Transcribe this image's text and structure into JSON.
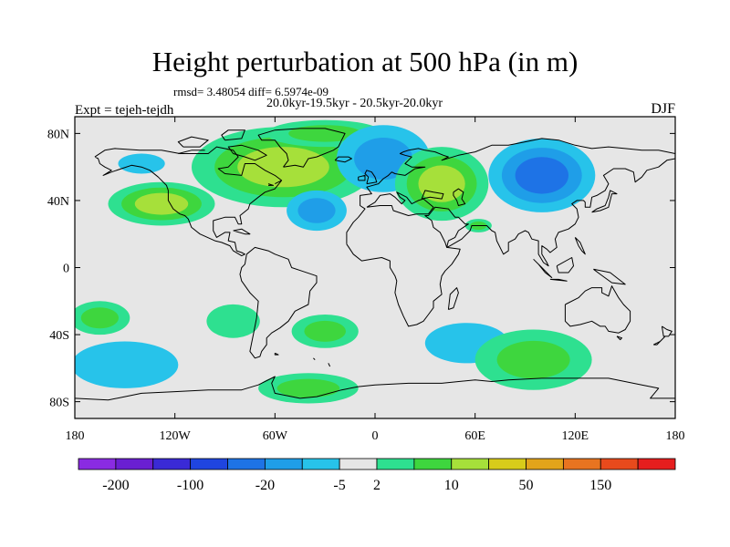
{
  "header": {
    "title": "Height perturbation at 500 hPa (in m)",
    "stats": "rmsd= 3.48054 diff= 6.5974e-09",
    "period": "20.0kyr-19.5kyr - 20.5kyr-20.0kyr",
    "left_label": "Expt = tejeh-tejdh",
    "right_label": "DJF"
  },
  "chart_data": {
    "type": "heatmap",
    "projection": "cylindrical-equidistant",
    "title": "Height perturbation at 500 hPa (in m)",
    "xlim": [
      -180,
      180
    ],
    "ylim": [
      -90,
      90
    ],
    "x_ticks": [
      {
        "value": -180,
        "label": "180"
      },
      {
        "value": -120,
        "label": "120W"
      },
      {
        "value": -60,
        "label": "60W"
      },
      {
        "value": 0,
        "label": "0"
      },
      {
        "value": 60,
        "label": "60E"
      },
      {
        "value": 120,
        "label": "120E"
      },
      {
        "value": 180,
        "label": "180"
      }
    ],
    "y_ticks": [
      {
        "value": 80,
        "label": "80N"
      },
      {
        "value": 40,
        "label": "40N"
      },
      {
        "value": 0,
        "label": "0"
      },
      {
        "value": -40,
        "label": "40S"
      },
      {
        "value": -80,
        "label": "80S"
      }
    ],
    "colorbar": {
      "colors": [
        "#8a2be2",
        "#6a1fd2",
        "#3a2ad6",
        "#1f45e0",
        "#1e73e6",
        "#1f9ee8",
        "#27c3ea",
        "#e6e6e6",
        "#2ee090",
        "#3ed63e",
        "#a6e03a",
        "#d8cc1a",
        "#e2a41a",
        "#e87420",
        "#e84a1c",
        "#e61e1e"
      ],
      "levels": [
        -200,
        -150,
        -100,
        -50,
        -20,
        -10,
        -5,
        2,
        5,
        10,
        20,
        50,
        100,
        150,
        200
      ],
      "labels": [
        {
          "value": -200,
          "label": "-200"
        },
        {
          "value": -100,
          "label": "-100"
        },
        {
          "value": -20,
          "label": "-20"
        },
        {
          "value": -5,
          "label": "-5"
        },
        {
          "value": 2,
          "label": "2"
        },
        {
          "value": 10,
          "label": "10"
        },
        {
          "value": 50,
          "label": "50"
        },
        {
          "value": 150,
          "label": "150"
        }
      ]
    },
    "anomalies": [
      {
        "lon": -55,
        "lat": 60,
        "rlon": 55,
        "rlat": 24,
        "value": 14
      },
      {
        "lon": -30,
        "lat": 80,
        "rlon": 35,
        "rlat": 8,
        "value": 6
      },
      {
        "lon": -128,
        "lat": 38,
        "rlon": 32,
        "rlat": 13,
        "value": 12
      },
      {
        "lon": -160,
        "lat": 68,
        "rlon": 25,
        "rlat": 10,
        "value": -4
      },
      {
        "lon": -140,
        "lat": 62,
        "rlon": 14,
        "rlat": 6,
        "value": -6
      },
      {
        "lon": -35,
        "lat": 34,
        "rlon": 18,
        "rlat": 12,
        "value": -12
      },
      {
        "lon": 5,
        "lat": 65,
        "rlon": 28,
        "rlat": 20,
        "value": -15
      },
      {
        "lon": 40,
        "lat": 50,
        "rlon": 28,
        "rlat": 22,
        "value": 12
      },
      {
        "lon": 100,
        "lat": 55,
        "rlon": 32,
        "rlat": 22,
        "value": -22
      },
      {
        "lon": 125,
        "lat": 38,
        "rlon": 14,
        "rlat": 9,
        "value": -4
      },
      {
        "lon": 62,
        "lat": 25,
        "rlon": 8,
        "rlat": 4,
        "value": 5
      },
      {
        "lon": 175,
        "lat": 53,
        "rlon": 8,
        "rlat": 10,
        "value": -5
      },
      {
        "lon": -165,
        "lat": -30,
        "rlon": 18,
        "rlat": 10,
        "value": 9
      },
      {
        "lon": -150,
        "lat": -58,
        "rlon": 32,
        "rlat": 14,
        "value": -10
      },
      {
        "lon": -85,
        "lat": -32,
        "rlon": 16,
        "rlat": 10,
        "value": 4
      },
      {
        "lon": -60,
        "lat": -40,
        "rlon": 10,
        "rlat": 12,
        "value": -4
      },
      {
        "lon": -30,
        "lat": -38,
        "rlon": 20,
        "rlat": 10,
        "value": 5
      },
      {
        "lon": -40,
        "lat": -72,
        "rlon": 30,
        "rlat": 9,
        "value": 8
      },
      {
        "lon": 5,
        "lat": -68,
        "rlon": 25,
        "rlat": 12,
        "value": -4
      },
      {
        "lon": 55,
        "lat": -45,
        "rlon": 25,
        "rlat": 12,
        "value": -10
      },
      {
        "lon": 95,
        "lat": -55,
        "rlon": 35,
        "rlat": 18,
        "value": 9
      },
      {
        "lon": 170,
        "lat": -35,
        "rlon": 12,
        "rlat": 8,
        "value": -4
      }
    ]
  }
}
